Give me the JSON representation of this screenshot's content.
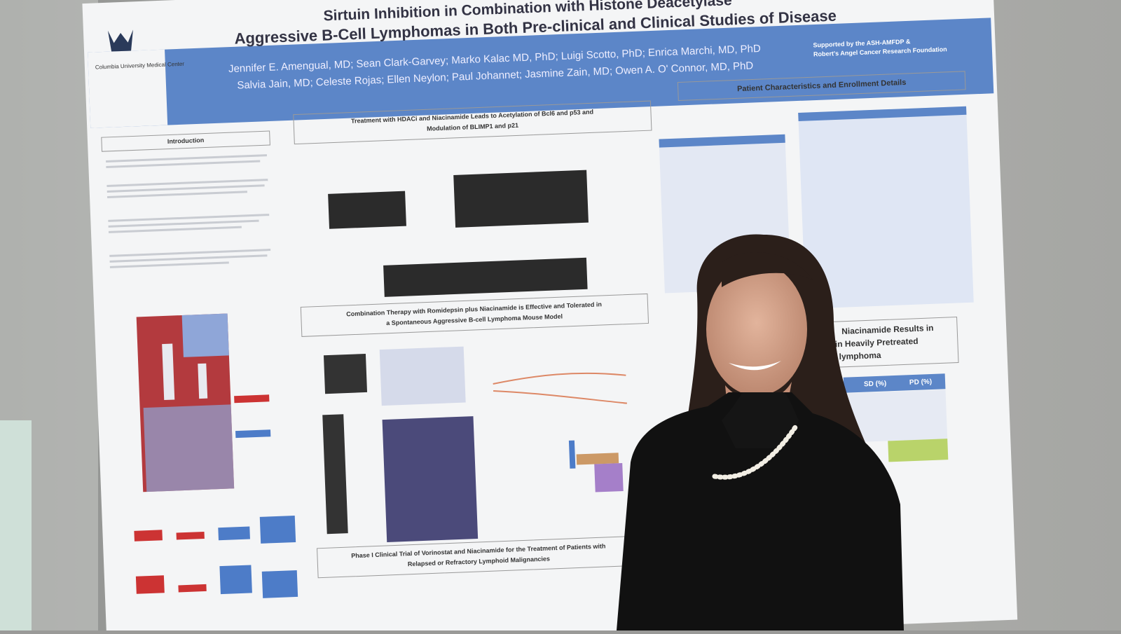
{
  "poster": {
    "institution": "Columbia University Medical Center",
    "title": [
      "Sirtuin Inhibition in Combination with Histone Deacetylase",
      "Aggressive B-Cell Lymphomas in Both Pre-clinical and Clinical Studies of Disease"
    ],
    "authors": [
      "Jennifer E. Amengual, MD; Sean Clark-Garvey; Marko Kalac MD, PhD; Luigi Scotto, PhD; Enrica Marchi, MD, PhD",
      "Salvia Jain, MD; Celeste Rojas; Ellen Neylon; Paul Johannet; Jasmine Zain, MD; Owen A. O' Connor, MD, PhD"
    ],
    "support": [
      "Supported by the ASH-AMFDP &",
      "Robert's Angel Cancer Research Foundation"
    ],
    "sections": {
      "introduction": "Introduction",
      "treatment": [
        "Treatment with HDACi and Niacinamide Leads to Acetylation of Bcl6 and p53 and",
        "Modulation of BLIMP1 and p21"
      ],
      "patients": "Patient Characteristics and Enrollment Details",
      "combination": [
        "Combination Therapy with Romidepsin plus Niacinamide is Effective and Tolerated in",
        "a Spontaneous Aggressive B-cell Lymphoma Mouse Model"
      ],
      "phase1": [
        "Phase I Clinical Trial of Vorinostat and Niacinamide for the Treatment of Patients with",
        "Relapsed or Refractory Lymphoid Malignancies"
      ],
      "results": [
        "Niacinamide Results in",
        "in Heavily Pretreated",
        "lymphoma"
      ]
    },
    "table_headers": [
      "SD (%)",
      "PD (%)"
    ]
  }
}
